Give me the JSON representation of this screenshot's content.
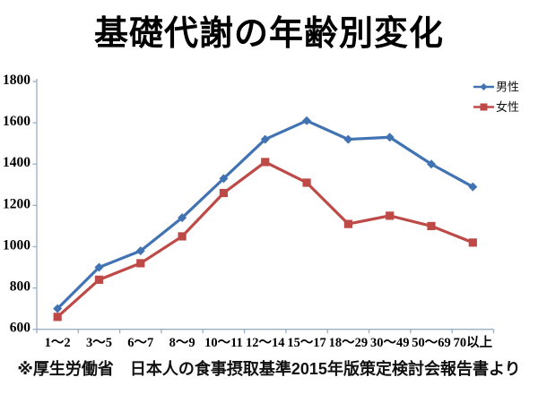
{
  "title": "基礎代謝の年齢別変化",
  "footer": "※厚生労働省　日本人の食事摂取基準2015年版策定検討会報告書より",
  "chart_data": {
    "type": "line",
    "title": "基礎代謝の年齢別変化",
    "categories": [
      "1〜2",
      "3〜5",
      "6〜7",
      "8〜9",
      "10〜11",
      "12〜14",
      "15〜17",
      "18〜29",
      "30〜49",
      "50〜69",
      "70以上"
    ],
    "series": [
      {
        "name": "男性",
        "color": "#4173B3",
        "marker": "diamond",
        "values": [
          700,
          900,
          980,
          1140,
          1330,
          1520,
          1610,
          1520,
          1530,
          1400,
          1290
        ]
      },
      {
        "name": "女性",
        "color": "#BE4A47",
        "marker": "square",
        "values": [
          660,
          840,
          920,
          1050,
          1260,
          1410,
          1310,
          1110,
          1150,
          1100,
          1020
        ]
      }
    ],
    "xlabel": "",
    "ylabel": "",
    "ylim": [
      600,
      1800
    ],
    "yticks": [
      600,
      800,
      1000,
      1200,
      1400,
      1600,
      1800
    ],
    "grid": false,
    "legend_position": "top-right",
    "axis_color": "#9CAEC6",
    "source_note": "※厚生労働省　日本人の食事摂取基準2015年版策定検討会報告書より"
  }
}
